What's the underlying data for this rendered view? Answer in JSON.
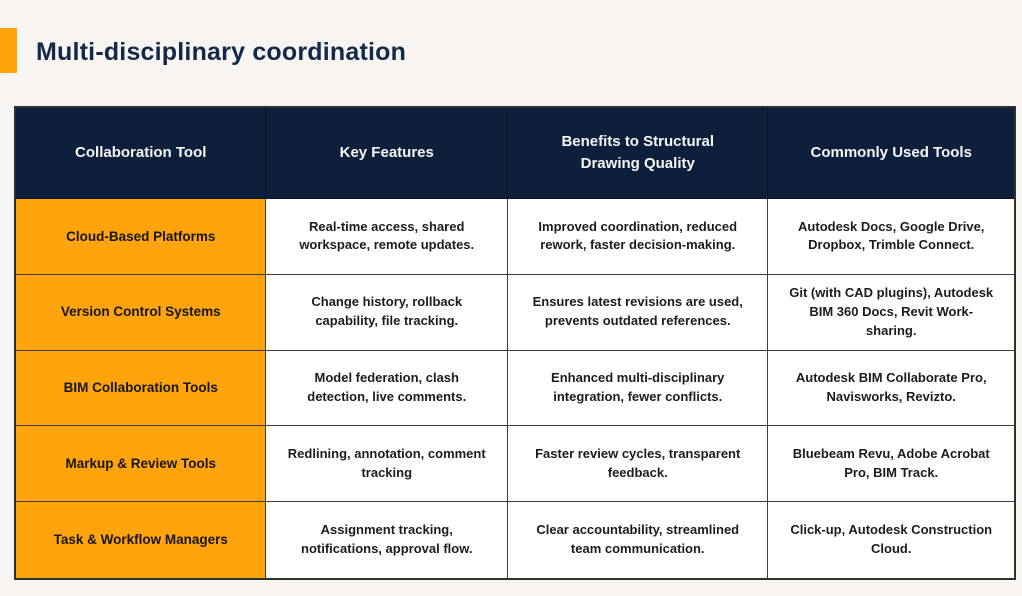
{
  "slide": {
    "title": "Multi-disciplinary coordination"
  },
  "colors": {
    "accent_orange": "#FFA40D",
    "header_navy": "#0D1F3B",
    "title_navy": "#12294A",
    "background_cream": "#F8F4F1",
    "body_text": "#1C1C1C",
    "border_dark": "#3D3D3D"
  },
  "chart_data": {
    "type": "table",
    "title": "Multi-disciplinary coordination",
    "columns": [
      "Collaboration Tool",
      "Key Features",
      "Benefits to Structural Drawing Quality",
      "Commonly Used Tools"
    ],
    "rows": [
      [
        "Cloud-Based Platforms",
        "Real-time access, shared workspace, remote updates.",
        "Improved coordination, reduced rework, faster decision-making.",
        "Autodesk Docs, Google Drive, Dropbox, Trimble Connect."
      ],
      [
        "Version Control Systems",
        "Change history, rollback capability, file tracking.",
        "Ensures latest revisions are used, prevents outdated references.",
        "Git (with CAD plugins), Autodesk BIM 360 Docs, Revit Work-sharing."
      ],
      [
        "BIM Collaboration Tools",
        "Model federation, clash detection, live comments.",
        "Enhanced multi-disciplinary integration, fewer conflicts.",
        "Autodesk BIM Collaborate Pro, Navisworks, Revizto."
      ],
      [
        "Markup & Review Tools",
        "Redlining, annotation, comment tracking",
        "Faster review cycles, transparent feedback.",
        "Bluebeam Revu, Adobe Acrobat Pro, BIM Track."
      ],
      [
        "Task & Workflow Managers",
        "Assignment tracking, notifications, approval flow.",
        "Clear accountability, streamlined team communication.",
        "Click-up, Autodesk Construction Cloud."
      ]
    ]
  },
  "table": {
    "headers": [
      "Collaboration Tool",
      "Key Features",
      "Benefits to Structural Drawing Quality",
      "Commonly Used Tools"
    ],
    "rows": [
      {
        "tool": "Cloud-Based Platforms",
        "features": "Real-time access, shared workspace, remote updates.",
        "benefits": "Improved coordination, reduced rework, faster decision-making.",
        "tools": "Autodesk Docs, Google Drive, Dropbox, Trimble Connect."
      },
      {
        "tool": "Version Control Systems",
        "features": "Change history, rollback capability, file tracking.",
        "benefits": "Ensures latest revisions are used, prevents outdated references.",
        "tools": "Git (with CAD plugins), Autodesk BIM 360 Docs, Revit Work-sharing."
      },
      {
        "tool": "BIM Collaboration Tools",
        "features": "Model federation, clash detection, live comments.",
        "benefits": "Enhanced multi-disciplinary integration, fewer conflicts.",
        "tools": "Autodesk BIM Collaborate Pro, Navisworks, Revizto."
      },
      {
        "tool": "Markup & Review Tools",
        "features": "Redlining, annotation, comment tracking",
        "benefits": "Faster review cycles, transparent feedback.",
        "tools": "Bluebeam Revu, Adobe Acrobat Pro, BIM Track."
      },
      {
        "tool": "Task & Workflow Managers",
        "features": "Assignment tracking, notifications, approval flow.",
        "benefits": "Clear accountability, streamlined team communication.",
        "tools": "Click-up, Autodesk Construction Cloud."
      }
    ]
  }
}
